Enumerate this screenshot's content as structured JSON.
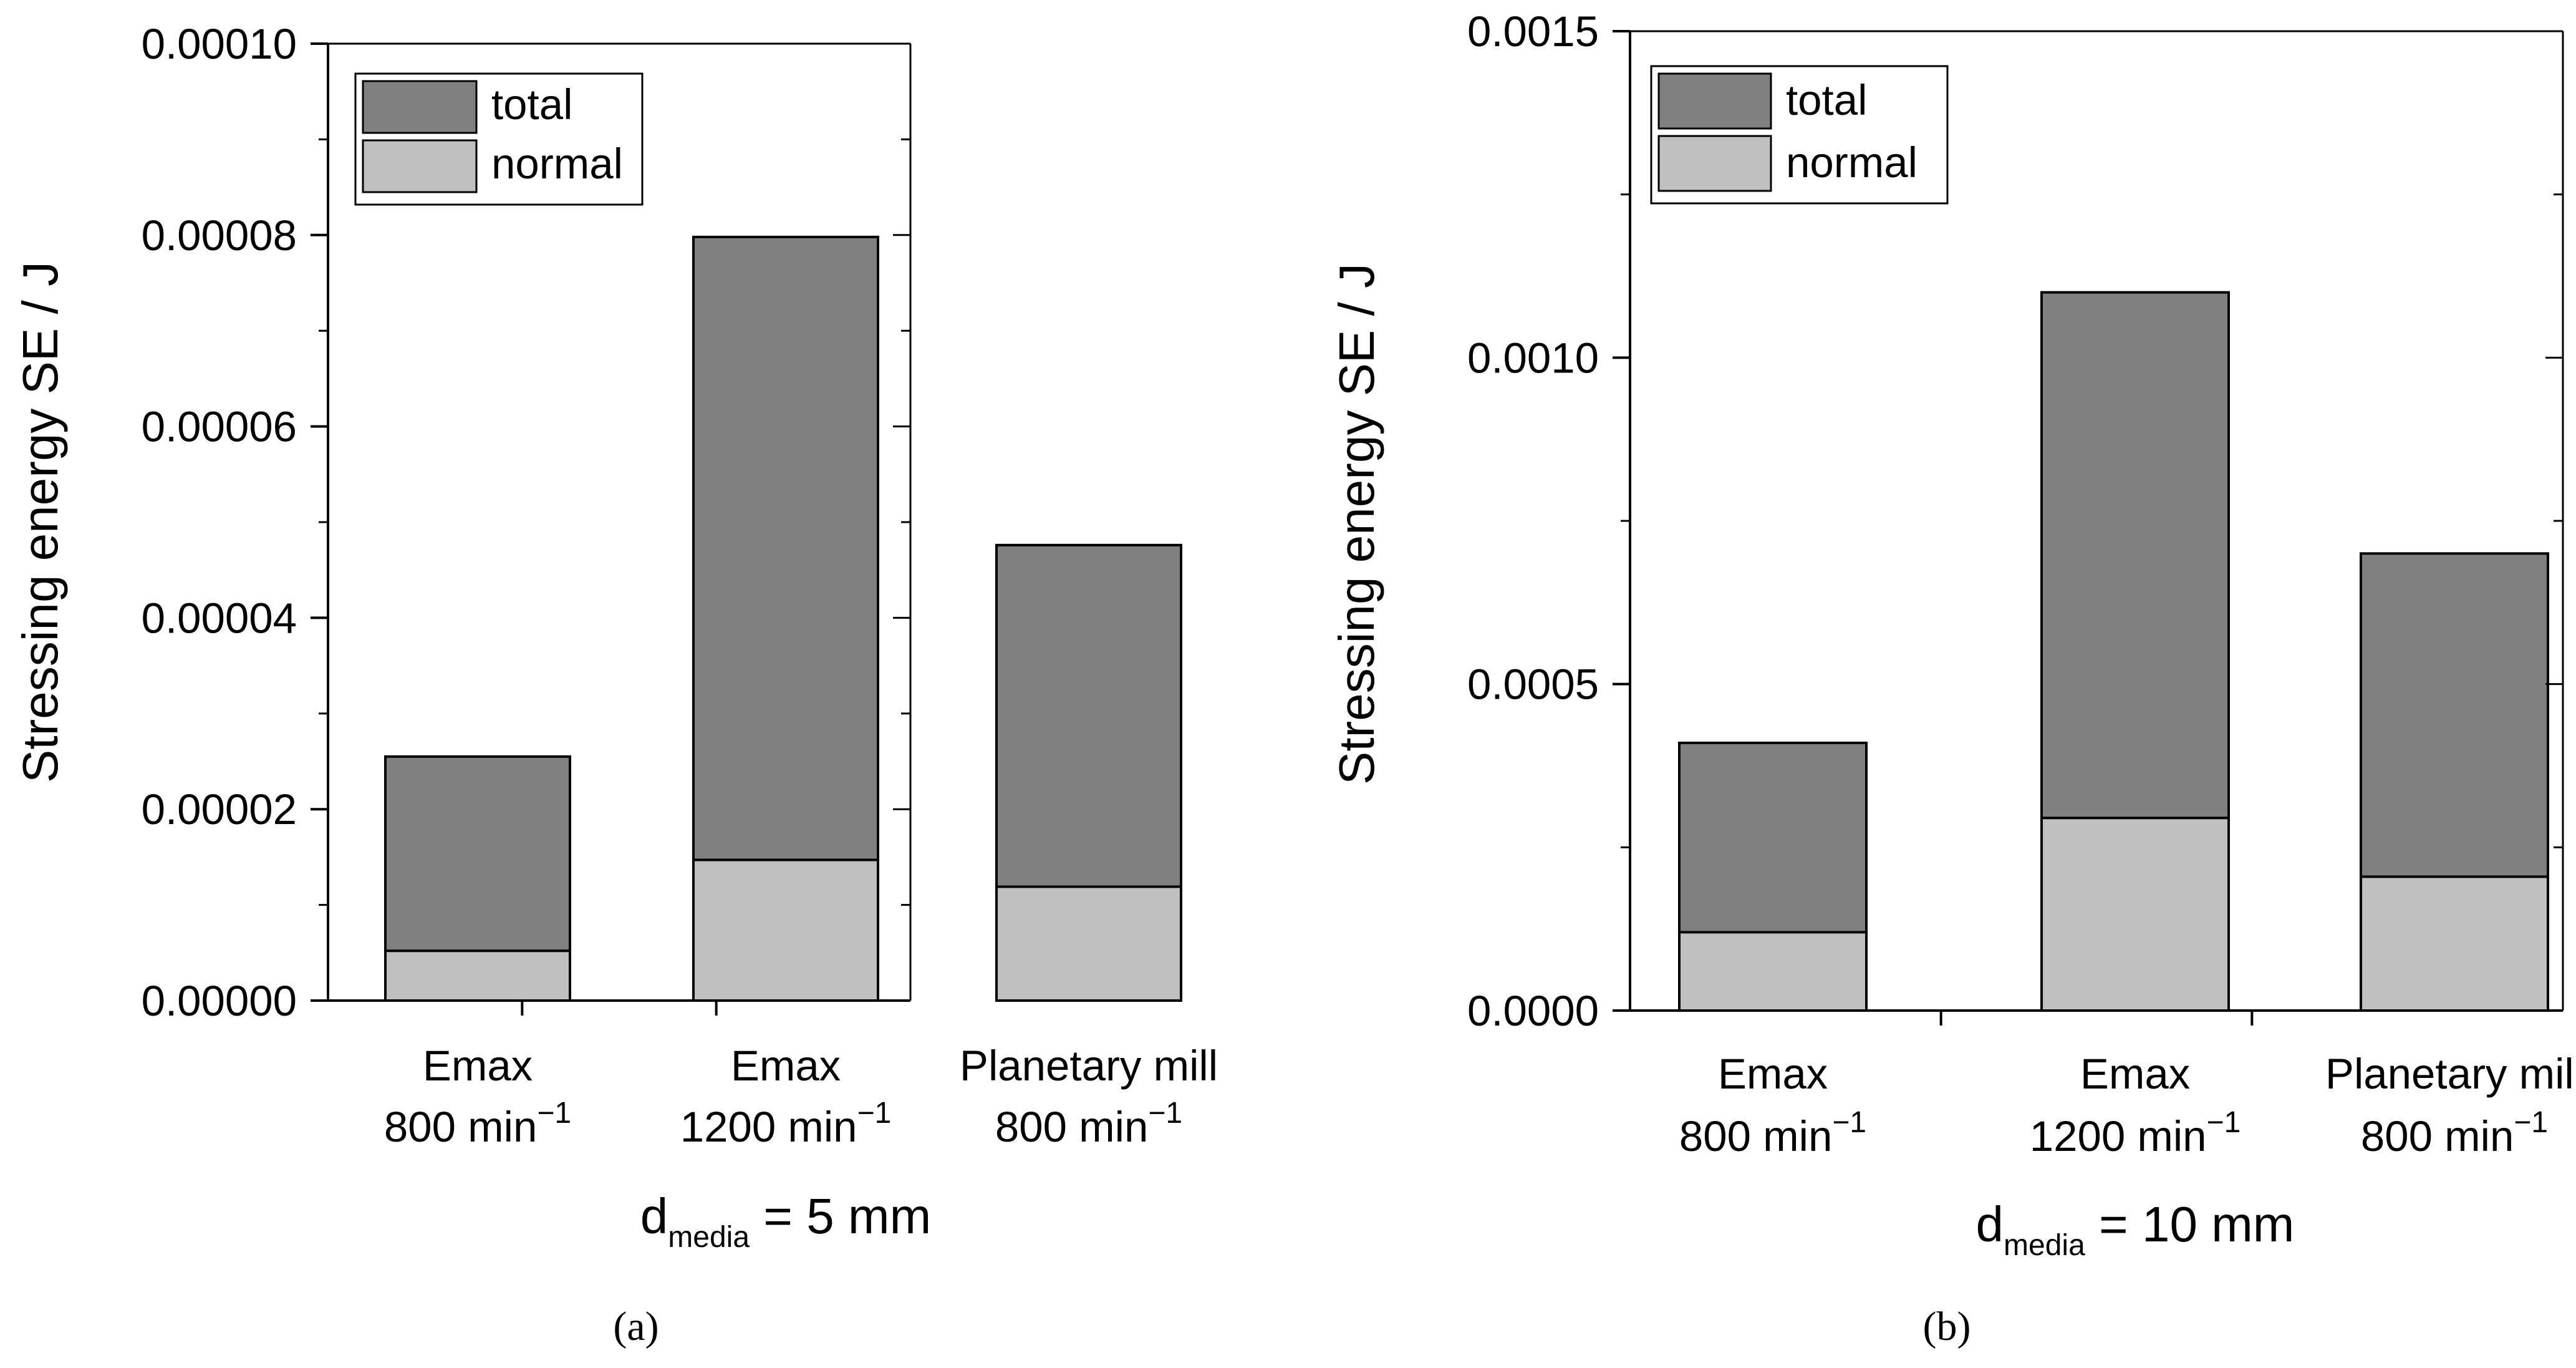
{
  "colors": {
    "total": "#808080",
    "normal": "#c0c0c0",
    "axis": "#000000"
  },
  "chart_data": [
    {
      "type": "bar",
      "stacked": true,
      "panel": "a",
      "panel_label": "(a)",
      "ylabel": "Stressing energy SE / J",
      "xlabel": {
        "main": "d",
        "sub": "media",
        "rest": " = 5 mm"
      },
      "ylim": [
        0,
        0.0001
      ],
      "yticks": [
        "0.00000",
        "0.00002",
        "0.00004",
        "0.00006",
        "0.00008",
        "0.00010"
      ],
      "ytick_values": [
        0,
        2e-05,
        4e-05,
        6e-05,
        8e-05,
        0.0001
      ],
      "categories": [
        {
          "line1": "Emax",
          "line2_base": "800 min",
          "line2_sup": "−1"
        },
        {
          "line1": "Emax",
          "line2_base": "1200 min",
          "line2_sup": "−1"
        },
        {
          "line1": "Planetary mill",
          "line2_base": "800 min",
          "line2_sup": "−1"
        }
      ],
      "series": [
        {
          "name": "total",
          "values": [
            2.55e-05,
            7.98e-05,
            4.76e-05
          ]
        },
        {
          "name": "normal",
          "values": [
            5.2e-06,
            1.47e-05,
            1.19e-05
          ]
        }
      ],
      "legend": {
        "position": "top-left",
        "entries": [
          "total",
          "normal"
        ]
      }
    },
    {
      "type": "bar",
      "stacked": true,
      "panel": "b",
      "panel_label": "(b)",
      "ylabel": "Stressing energy SE / J",
      "xlabel": {
        "main": "d",
        "sub": "media",
        "rest": " = 10 mm"
      },
      "ylim": [
        0,
        0.0015
      ],
      "yticks": [
        "0.0000",
        "0.0005",
        "0.0010",
        "0.0015"
      ],
      "ytick_values": [
        0,
        0.0005,
        0.001,
        0.0015
      ],
      "categories": [
        {
          "line1": "Emax",
          "line2_base": "800 min",
          "line2_sup": "−1"
        },
        {
          "line1": "Emax",
          "line2_base": "1200 min",
          "line2_sup": "−1"
        },
        {
          "line1": "Planetary mill",
          "line2_base": "800 min",
          "line2_sup": "−1"
        }
      ],
      "series": [
        {
          "name": "total",
          "values": [
            0.00041,
            0.0011,
            0.0007
          ]
        },
        {
          "name": "normal",
          "values": [
            0.00012,
            0.000295,
            0.000205
          ]
        }
      ],
      "legend": {
        "position": "top-left",
        "entries": [
          "total",
          "normal"
        ]
      }
    }
  ]
}
